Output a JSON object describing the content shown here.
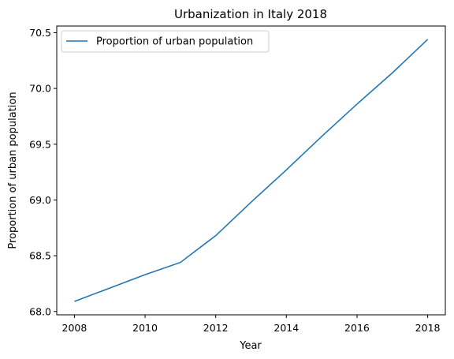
{
  "chart_data": {
    "type": "line",
    "title": "Urbanization in Italy 2018",
    "xlabel": "Year",
    "ylabel": "Proportion of urban population",
    "x": [
      2008,
      2009,
      2010,
      2011,
      2012,
      2013,
      2014,
      2015,
      2016,
      2017,
      2018
    ],
    "series": [
      {
        "name": "Proportion of urban population",
        "values": [
          68.09,
          68.21,
          68.33,
          68.44,
          68.68,
          68.98,
          69.27,
          69.57,
          69.86,
          70.14,
          70.44
        ],
        "color": "#1f77b4"
      }
    ],
    "xticks": [
      2008,
      2010,
      2012,
      2014,
      2016,
      2018
    ],
    "yticks": [
      "68.0",
      "68.5",
      "69.0",
      "69.5",
      "70.0",
      "70.5"
    ],
    "xlim": [
      2007.5,
      2018.5
    ],
    "ylim": [
      67.97,
      70.56
    ],
    "grid": false,
    "legend_position": "top-left"
  }
}
